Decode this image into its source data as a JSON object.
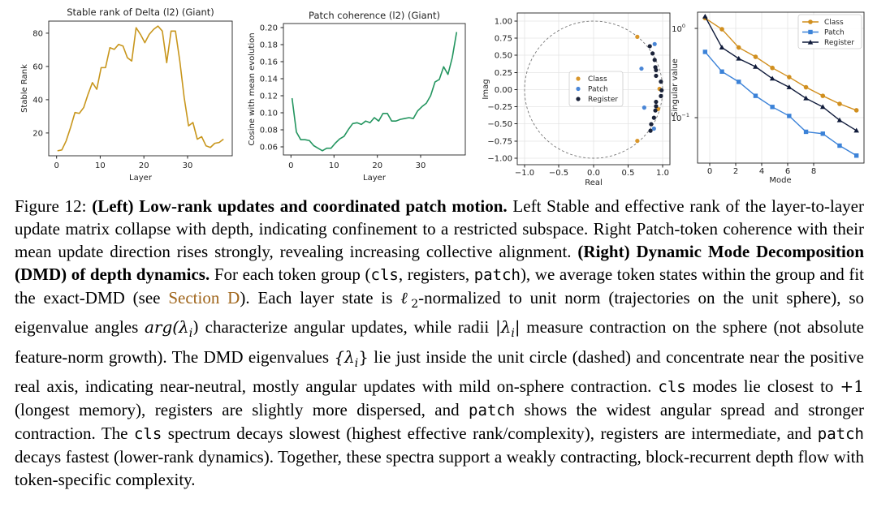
{
  "figure": {
    "panel1": {
      "title": "Stable rank of Delta (l2) (Giant)",
      "xlabel": "Layer",
      "ylabel": "Stable Rank",
      "xticks": [
        "0",
        "10",
        "20",
        "30"
      ],
      "yticks": [
        "20",
        "40",
        "60",
        "80"
      ]
    },
    "panel2": {
      "title": "Patch coherence (l2) (Giant)",
      "xlabel": "Layer",
      "ylabel": "Cosine with mean evolution",
      "xticks": [
        "0",
        "10",
        "20",
        "30"
      ],
      "yticks": [
        "0.06",
        "0.08",
        "0.10",
        "0.12",
        "0.14",
        "0.16",
        "0.18",
        "0.20"
      ]
    },
    "panel3": {
      "xlabel": "Real",
      "ylabel": "Imag",
      "xticks": [
        "−1.0",
        "−0.5",
        "0.0",
        "0.5",
        "1.0"
      ],
      "yticks": [
        "1.00",
        "0.75",
        "0.50",
        "0.25",
        "0.00",
        "−0.25",
        "−0.50",
        "−0.75",
        "−1.00"
      ],
      "legend": [
        "Class",
        "Patch",
        "Register"
      ]
    },
    "panel4": {
      "xlabel": "Mode",
      "ylabel": "Singular value",
      "xticks": [
        "0",
        "2",
        "4",
        "6",
        "8"
      ],
      "ytick_major": "10",
      "ytick_major_exp": "0",
      "ytick_minor": "10",
      "ytick_minor_exp": "−1",
      "legend": [
        "Class",
        "Patch",
        "Register"
      ]
    }
  },
  "chart_data": [
    {
      "type": "line",
      "title": "Stable rank of Delta (l2) (Giant)",
      "xlabel": "Layer",
      "ylabel": "Stable Rank",
      "xlim": [
        -2,
        40
      ],
      "ylim": [
        5,
        86
      ],
      "color": "#c8961c",
      "x": [
        0,
        1,
        2,
        3,
        4,
        5,
        6,
        7,
        8,
        9,
        10,
        11,
        12,
        13,
        14,
        15,
        16,
        17,
        18,
        19,
        20,
        21,
        22,
        23,
        24,
        25,
        26,
        27,
        28,
        29,
        30,
        31,
        32,
        33,
        34,
        35,
        36,
        37,
        38
      ],
      "y": [
        8,
        8.5,
        14,
        22,
        31,
        30.5,
        34,
        42,
        49,
        45,
        58,
        58,
        70,
        69,
        72,
        71,
        64,
        62,
        82,
        78,
        73,
        78,
        81,
        83,
        80,
        61,
        80,
        80,
        62,
        40,
        23,
        25,
        15,
        16.5,
        11,
        10,
        12.5,
        13,
        15
      ]
    },
    {
      "type": "line",
      "title": "Patch coherence (l2) (Giant)",
      "xlabel": "Layer",
      "ylabel": "Cosine with mean evolution",
      "xlim": [
        -2,
        40
      ],
      "ylim": [
        0.048,
        0.203
      ],
      "color": "#23955f",
      "x": [
        0,
        1,
        2,
        3,
        4,
        5,
        6,
        7,
        8,
        9,
        10,
        11,
        12,
        13,
        14,
        15,
        16,
        17,
        18,
        19,
        20,
        21,
        22,
        23,
        24,
        25,
        26,
        27,
        28,
        29,
        30,
        31,
        32,
        33,
        34,
        35,
        36,
        37,
        38
      ],
      "y": [
        0.115,
        0.075,
        0.066,
        0.066,
        0.065,
        0.059,
        0.056,
        0.053,
        0.056,
        0.056,
        0.062,
        0.067,
        0.07,
        0.078,
        0.085,
        0.086,
        0.084,
        0.088,
        0.086,
        0.092,
        0.088,
        0.097,
        0.097,
        0.088,
        0.088,
        0.09,
        0.091,
        0.092,
        0.091,
        0.1,
        0.105,
        0.109,
        0.118,
        0.134,
        0.137,
        0.152,
        0.143,
        0.163,
        0.193
      ]
    },
    {
      "type": "scatter",
      "xlabel": "Real",
      "ylabel": "Imag",
      "xlim": [
        -1.1,
        1.1
      ],
      "ylim": [
        -1.05,
        1.05
      ],
      "unit_circle": true,
      "series": [
        {
          "name": "Class",
          "color": "#d9962a",
          "points": [
            [
              0.63,
              0.72
            ],
            [
              0.95,
              0.0
            ],
            [
              0.93,
              -0.28
            ],
            [
              0.63,
              -0.72
            ]
          ]
        },
        {
          "name": "Patch",
          "color": "#4a86d6",
          "points": [
            [
              0.88,
              0.62
            ],
            [
              0.69,
              0.28
            ],
            [
              0.73,
              -0.26
            ],
            [
              0.87,
              -0.55
            ]
          ]
        },
        {
          "name": "Register",
          "color": "#1a2238",
          "points": [
            [
              0.81,
              0.59
            ],
            [
              0.85,
              0.49
            ],
            [
              0.88,
              0.4
            ],
            [
              0.89,
              0.3
            ],
            [
              0.9,
              0.26
            ],
            [
              0.9,
              0.18
            ],
            [
              0.97,
              0.1
            ],
            [
              0.98,
              -0.02
            ],
            [
              0.97,
              -0.1
            ],
            [
              0.9,
              -0.18
            ],
            [
              0.9,
              -0.24
            ],
            [
              0.89,
              -0.3
            ],
            [
              0.87,
              -0.4
            ],
            [
              0.83,
              -0.49
            ],
            [
              0.82,
              -0.58
            ]
          ]
        }
      ]
    },
    {
      "type": "line",
      "xlabel": "Mode",
      "ylabel": "Singular value",
      "y_scale": "log",
      "xlim": [
        -0.45,
        9.45
      ],
      "ylim": [
        0.028,
        1.4
      ],
      "x": [
        0,
        1,
        2,
        3,
        4,
        5,
        6,
        7,
        8,
        9
      ],
      "series": [
        {
          "name": "Class",
          "color": "#d18f1e",
          "marker": "circle",
          "values": [
            1.2,
            0.9,
            0.56,
            0.44,
            0.33,
            0.26,
            0.2,
            0.16,
            0.13,
            0.11
          ]
        },
        {
          "name": "Patch",
          "color": "#3b82d8",
          "marker": "square",
          "values": [
            0.5,
            0.3,
            0.23,
            0.16,
            0.12,
            0.095,
            0.063,
            0.06,
            0.044,
            0.034
          ]
        },
        {
          "name": "Register",
          "color": "#0f1a3a",
          "marker": "triangle",
          "values": [
            1.25,
            0.56,
            0.42,
            0.34,
            0.25,
            0.2,
            0.15,
            0.12,
            0.085,
            0.065
          ]
        }
      ]
    }
  ],
  "caption": {
    "label": "Figure 12:",
    "left_heading": "(Left) Low-rank updates and coordinated patch motion.",
    "t1": " Left Stable and effective rank of the layer-to-layer update matrix collapse with depth, indicating confinement to a restricted subspace. Right Patch-token coherence with their mean update direction rises strongly, revealing increasing collective alignment. ",
    "right_heading": "(Right) Dynamic Mode Decomposition (DMD) of depth dynamics.",
    "t2": " For each token group (",
    "cls": "cls",
    "t3": ", registers, ",
    "patch": "patch",
    "t4": "), we average token states within the group and fit the exact-DMD (see ",
    "section_link": "Section D",
    "t5": "). Each layer state is ",
    "ell": "ℓ",
    "two": "2",
    "t6": "-normalized to unit norm (trajectories on the unit sphere), so eigenvalue angles ",
    "arg": "arg(λ",
    "sub_i": "i",
    "close_paren": ")",
    "t7": " characterize angular updates, while radii ",
    "abs_open": "|λ",
    "abs_close": "|",
    "t8": " measure contraction on the sphere (not absolute feature-norm growth). The DMD eigenvalues ",
    "set_open": "{λ",
    "set_close": "}",
    "t9": " lie just inside the unit circle (dashed) and concentrate near the positive real axis, indicating near-neutral, mostly angular updates with mild on-sphere contraction. ",
    "cls2": "cls",
    "t10": " modes lie closest to ",
    "plus_one": "+1",
    "t11": " (longest memory), registers are slightly more dispersed, and ",
    "patch2": "patch",
    "t12": " shows the widest angular spread and stronger contraction. The ",
    "cls3": "cls",
    "t13": " spectrum decays slowest (highest effective rank/complexity), registers are intermediate, and ",
    "patch3": "patch",
    "t14": " decays fastest (lower-rank dynamics). Together, these spectra support a weakly contracting, block-recurrent depth flow with token-specific complexity."
  }
}
